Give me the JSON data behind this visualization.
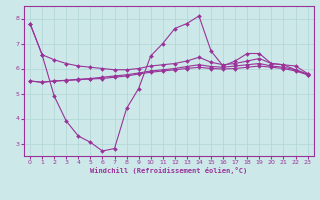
{
  "xlabel": "Windchill (Refroidissement éolien,°C)",
  "xlim": [
    -0.5,
    23.5
  ],
  "ylim": [
    2.5,
    8.5
  ],
  "xticks": [
    0,
    1,
    2,
    3,
    4,
    5,
    6,
    7,
    8,
    9,
    10,
    11,
    12,
    13,
    14,
    15,
    16,
    17,
    18,
    19,
    20,
    21,
    22,
    23
  ],
  "yticks": [
    3,
    4,
    5,
    6,
    7,
    8
  ],
  "background_color": "#cce8e8",
  "grid_color": "#b0d4d4",
  "line_color": "#993399",
  "line1_x": [
    0,
    1,
    2,
    3,
    4,
    5,
    6,
    7,
    8,
    9,
    10,
    11,
    12,
    13,
    14,
    15,
    16,
    17,
    18,
    19,
    20,
    21,
    22,
    23
  ],
  "line1_y": [
    7.8,
    6.55,
    6.35,
    6.2,
    6.1,
    6.05,
    6.0,
    5.95,
    5.95,
    6.0,
    6.1,
    6.15,
    6.2,
    6.3,
    6.45,
    6.25,
    6.15,
    6.2,
    6.3,
    6.4,
    6.2,
    6.15,
    6.1,
    5.8
  ],
  "line2_x": [
    0,
    1,
    2,
    3,
    4,
    5,
    6,
    7,
    8,
    9,
    10,
    11,
    12,
    13,
    14,
    15,
    16,
    17,
    18,
    19,
    20,
    21,
    22,
    23
  ],
  "line2_y": [
    5.5,
    5.45,
    5.5,
    5.52,
    5.55,
    5.58,
    5.6,
    5.65,
    5.7,
    5.78,
    5.85,
    5.9,
    5.95,
    6.0,
    6.05,
    6.0,
    5.98,
    6.0,
    6.05,
    6.1,
    6.05,
    6.0,
    5.9,
    5.75
  ],
  "line3_x": [
    0,
    1,
    2,
    3,
    4,
    5,
    6,
    7,
    8,
    9,
    10,
    11,
    12,
    13,
    14,
    15,
    16,
    17,
    18,
    19,
    20,
    21,
    22,
    23
  ],
  "line3_y": [
    5.5,
    5.45,
    5.5,
    5.53,
    5.57,
    5.6,
    5.65,
    5.7,
    5.75,
    5.82,
    5.9,
    5.95,
    6.0,
    6.08,
    6.15,
    6.08,
    6.05,
    6.1,
    6.15,
    6.2,
    6.1,
    6.05,
    5.95,
    5.78
  ],
  "line4_x": [
    0,
    1,
    2,
    3,
    4,
    5,
    6,
    7,
    8,
    9,
    10,
    11,
    12,
    13,
    14,
    15,
    16,
    17,
    18,
    19,
    20,
    21,
    22,
    23
  ],
  "line4_y": [
    7.8,
    6.55,
    4.9,
    3.9,
    3.3,
    3.05,
    2.7,
    2.8,
    4.4,
    5.2,
    6.5,
    7.0,
    7.6,
    7.8,
    8.1,
    6.7,
    6.1,
    6.3,
    6.6,
    6.6,
    6.2,
    6.15,
    5.95,
    5.75
  ]
}
